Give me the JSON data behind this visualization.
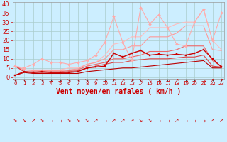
{
  "background_color": "#cceeff",
  "grid_color": "#aacccc",
  "xlabel": "Vent moyen/en rafales ( km/h )",
  "xlabel_color": "#cc0000",
  "xlabel_fontsize": 7,
  "ylabel_ticks": [
    0,
    5,
    10,
    15,
    20,
    25,
    30,
    35,
    40
  ],
  "xticks": [
    0,
    1,
    2,
    3,
    4,
    5,
    6,
    7,
    8,
    9,
    10,
    11,
    12,
    13,
    14,
    15,
    16,
    17,
    18,
    19,
    20,
    21,
    22,
    23
  ],
  "xlim": [
    -0.3,
    23.3
  ],
  "ylim": [
    -1,
    41
  ],
  "lines": [
    {
      "x": [
        0,
        1,
        2,
        3,
        4,
        5,
        6,
        7,
        8,
        9,
        10,
        11,
        12,
        13,
        14,
        15,
        16,
        17,
        18,
        19,
        20,
        21,
        22,
        23
      ],
      "y": [
        6,
        5,
        7,
        10,
        8,
        8,
        7,
        8,
        9,
        12,
        19,
        33,
        19,
        9,
        38,
        29,
        34,
        27,
        18,
        17,
        30,
        37,
        20,
        35
      ],
      "color": "#ffaaaa",
      "linewidth": 0.8,
      "marker": "D",
      "markersize": 2.0,
      "zorder": 4
    },
    {
      "x": [
        0,
        1,
        2,
        3,
        4,
        5,
        6,
        7,
        8,
        9,
        10,
        11,
        12,
        13,
        14,
        15,
        16,
        17,
        18,
        19,
        20,
        21,
        22,
        23
      ],
      "y": [
        6,
        4,
        4,
        4,
        4,
        4,
        5,
        5,
        7,
        8,
        12,
        18,
        19,
        22,
        22,
        27,
        27,
        27,
        29,
        30,
        30,
        37,
        20,
        15
      ],
      "color": "#ffbbbb",
      "linewidth": 0.8,
      "marker": null,
      "markersize": 0,
      "zorder": 2
    },
    {
      "x": [
        0,
        1,
        2,
        3,
        4,
        5,
        6,
        7,
        8,
        9,
        10,
        11,
        12,
        13,
        14,
        15,
        16,
        17,
        18,
        19,
        20,
        21,
        22,
        23
      ],
      "y": [
        6,
        4,
        3.5,
        3.5,
        3.5,
        3.5,
        4,
        4.5,
        7,
        8,
        10,
        15,
        15,
        17,
        17,
        22,
        22,
        22,
        24,
        28,
        28,
        28,
        15,
        14.5
      ],
      "color": "#ff9999",
      "linewidth": 0.8,
      "marker": null,
      "markersize": 0,
      "zorder": 2
    },
    {
      "x": [
        0,
        1,
        2,
        3,
        4,
        5,
        6,
        7,
        8,
        9,
        10,
        11,
        12,
        13,
        14,
        15,
        16,
        17,
        18,
        19,
        20,
        21,
        22,
        23
      ],
      "y": [
        6,
        3,
        3,
        3,
        3,
        3,
        3.5,
        4,
        6,
        7,
        8,
        10,
        10,
        11,
        12,
        14,
        14,
        14,
        15,
        17,
        17,
        17,
        9,
        6
      ],
      "color": "#ee6666",
      "linewidth": 0.8,
      "marker": null,
      "markersize": 0,
      "zorder": 3
    },
    {
      "x": [
        0,
        1,
        2,
        3,
        4,
        5,
        6,
        7,
        8,
        9,
        10,
        11,
        12,
        13,
        14,
        15,
        16,
        17,
        18,
        19,
        20,
        21,
        22,
        23
      ],
      "y": [
        6,
        3,
        2.5,
        2.5,
        2.5,
        2.5,
        3,
        3.5,
        5,
        6,
        7,
        8,
        8,
        9,
        9.5,
        10,
        10,
        10,
        10.5,
        11,
        11,
        12,
        6,
        5.5
      ],
      "color": "#dd4444",
      "linewidth": 0.8,
      "marker": null,
      "markersize": 0,
      "zorder": 3
    },
    {
      "x": [
        0,
        1,
        2,
        3,
        4,
        5,
        6,
        7,
        8,
        9,
        10,
        11,
        12,
        13,
        14,
        15,
        16,
        17,
        18,
        19,
        20,
        21,
        22,
        23
      ],
      "y": [
        1,
        3,
        2.5,
        3,
        2.5,
        2.5,
        2.5,
        3,
        5,
        5.5,
        6,
        13,
        11,
        13,
        14.5,
        12,
        12.5,
        12,
        12.5,
        12,
        13,
        15,
        10,
        5.5
      ],
      "color": "#cc0000",
      "linewidth": 1.0,
      "marker": "s",
      "markersize": 2.0,
      "zorder": 6
    },
    {
      "x": [
        0,
        1,
        2,
        3,
        4,
        5,
        6,
        7,
        8,
        9,
        10,
        11,
        12,
        13,
        14,
        15,
        16,
        17,
        18,
        19,
        20,
        21,
        22,
        23
      ],
      "y": [
        1,
        2.5,
        2,
        2,
        2,
        2,
        2,
        2,
        3,
        3.5,
        4,
        4.5,
        5,
        5,
        5.5,
        6,
        6.5,
        7,
        7.5,
        8,
        8.5,
        9,
        5,
        5
      ],
      "color": "#bb0000",
      "linewidth": 0.8,
      "marker": null,
      "markersize": 0,
      "zorder": 3
    }
  ],
  "wind_arrows": [
    "↘",
    "↘",
    "↗",
    "↘",
    "→",
    "→",
    "↘",
    "↘",
    "↘",
    "↗",
    "→",
    "↗",
    "↗",
    "↗",
    "↘",
    "↘",
    "→",
    "→",
    "↗",
    "→",
    "→",
    "→",
    "↗",
    "↗"
  ],
  "arrow_color": "#cc0000",
  "arrow_fontsize": 5.5
}
